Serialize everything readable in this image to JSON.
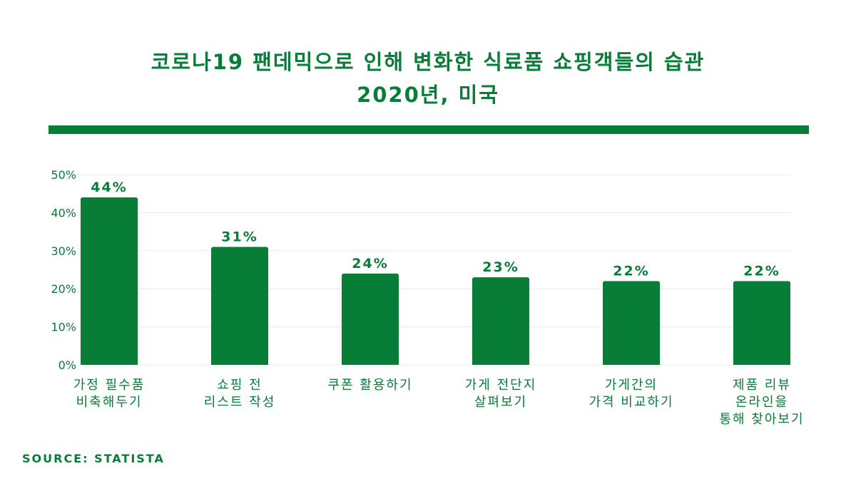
{
  "title": {
    "line1": "코로나19 팬데믹으로 인해 변화한 식료품 쇼핑객들의 습관",
    "line2": "2020년, 미국"
  },
  "source": "SOURCE: STATISTA",
  "colors": {
    "accent": "#077d37",
    "grid": "#e6ece8",
    "axis_text": "#077d37"
  },
  "chart_data": {
    "type": "bar",
    "categories": [
      [
        "가정 필수품",
        "비축해두기"
      ],
      [
        "쇼핑 전",
        "리스트 작성"
      ],
      [
        "쿠폰 활용하기"
      ],
      [
        "가게 전단지",
        "살펴보기"
      ],
      [
        "가게간의",
        "가격 비교하기"
      ],
      [
        "제품 리뷰",
        "온라인을",
        "통해 찾아보기"
      ]
    ],
    "values": [
      44,
      31,
      24,
      23,
      22,
      22
    ],
    "value_labels": [
      "44%",
      "31%",
      "24%",
      "23%",
      "22%",
      "22%"
    ],
    "yticks": [
      "0%",
      "10%",
      "20%",
      "30%",
      "40%",
      "50%"
    ],
    "ylim": [
      0,
      50
    ],
    "grid": true,
    "legend": "none"
  }
}
